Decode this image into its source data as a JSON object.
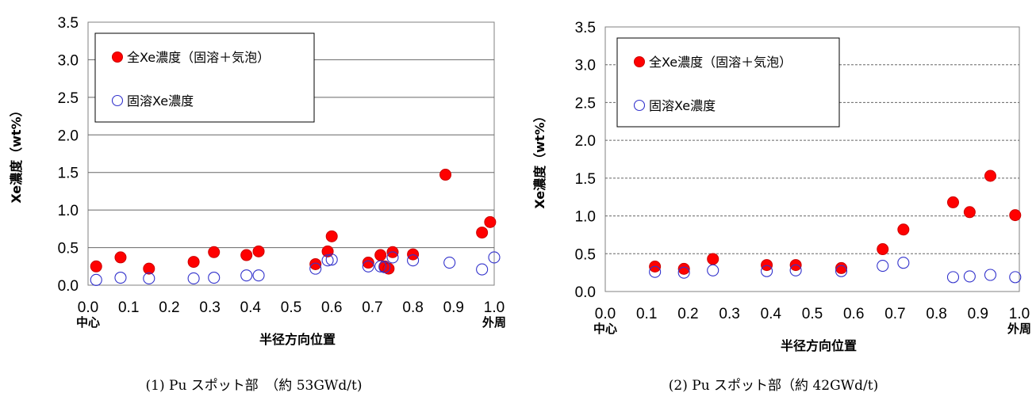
{
  "colors": {
    "total": "#ff0000",
    "dissolved": "#3333cc",
    "grid": "#666666"
  },
  "chart_data": [
    {
      "type": "scatter",
      "caption": "(1) Pu スポット部　（約 53GWd/t)",
      "xlabel": "半径方向位置",
      "ylabel": "Xe濃度（wt%）",
      "xlim": [
        0.0,
        1.0
      ],
      "ylim": [
        0.0,
        3.5
      ],
      "xticks": [
        "0.0",
        "0.1",
        "0.2",
        "0.3",
        "0.4",
        "0.5",
        "0.6",
        "0.7",
        "0.8",
        "0.9",
        "1.0"
      ],
      "yticks": [
        "0.0",
        "0.5",
        "1.0",
        "1.5",
        "2.0",
        "2.5",
        "3.0",
        "3.5"
      ],
      "x_edge_labels": {
        "left": "中心",
        "right": "外周"
      },
      "grid": "horizontal",
      "legend_position": "top-left",
      "series": [
        {
          "name": "全Xe濃度（固溶＋気泡）",
          "marker": "filled",
          "x": [
            0.02,
            0.08,
            0.15,
            0.26,
            0.31,
            0.39,
            0.42,
            0.56,
            0.59,
            0.6,
            0.69,
            0.72,
            0.73,
            0.74,
            0.75,
            0.8,
            0.88,
            0.97,
            0.99
          ],
          "y": [
            0.25,
            0.37,
            0.22,
            0.31,
            0.44,
            0.4,
            0.45,
            0.28,
            0.45,
            0.65,
            0.3,
            0.4,
            0.25,
            0.22,
            0.44,
            0.41,
            1.47,
            0.7,
            0.84
          ]
        },
        {
          "name": "固溶Xe濃度",
          "marker": "open",
          "x": [
            0.02,
            0.08,
            0.15,
            0.26,
            0.31,
            0.39,
            0.42,
            0.56,
            0.59,
            0.6,
            0.69,
            0.72,
            0.73,
            0.75,
            0.8,
            0.89,
            0.97,
            1.0
          ],
          "y": [
            0.07,
            0.1,
            0.09,
            0.09,
            0.1,
            0.13,
            0.13,
            0.22,
            0.33,
            0.34,
            0.25,
            0.25,
            0.24,
            0.37,
            0.33,
            0.3,
            0.21,
            0.37
          ]
        }
      ]
    },
    {
      "type": "scatter",
      "caption": "(2) Pu スポット部（約 42GWd/t)",
      "xlabel": "半径方向位置",
      "ylabel": "Xe濃度（wt%）",
      "xlim": [
        0.0,
        1.0
      ],
      "ylim": [
        0.0,
        3.5
      ],
      "xticks": [
        "0.0",
        "0.1",
        "0.2",
        "0.3",
        "0.4",
        "0.5",
        "0.6",
        "0.7",
        "0.8",
        "0.9",
        "1.0"
      ],
      "yticks": [
        "0.0",
        "0.5",
        "1.0",
        "1.5",
        "2.0",
        "2.5",
        "3.0",
        "3.5"
      ],
      "x_edge_labels": {
        "left": "中心",
        "right": "外周"
      },
      "grid": "horizontal",
      "legend_position": "top-left",
      "series": [
        {
          "name": "全Xe濃度（固溶＋気泡）",
          "marker": "filled",
          "x": [
            0.12,
            0.19,
            0.26,
            0.39,
            0.46,
            0.57,
            0.67,
            0.72,
            0.84,
            0.88,
            0.93,
            0.99
          ],
          "y": [
            0.33,
            0.3,
            0.43,
            0.35,
            0.35,
            0.31,
            0.56,
            0.82,
            1.18,
            1.05,
            1.53,
            1.01
          ]
        },
        {
          "name": "固溶Xe濃度",
          "marker": "open",
          "x": [
            0.12,
            0.19,
            0.26,
            0.39,
            0.46,
            0.57,
            0.67,
            0.72,
            0.84,
            0.88,
            0.93,
            0.99
          ],
          "y": [
            0.26,
            0.25,
            0.28,
            0.27,
            0.28,
            0.27,
            0.34,
            0.38,
            0.19,
            0.2,
            0.22,
            0.19
          ]
        }
      ]
    }
  ]
}
